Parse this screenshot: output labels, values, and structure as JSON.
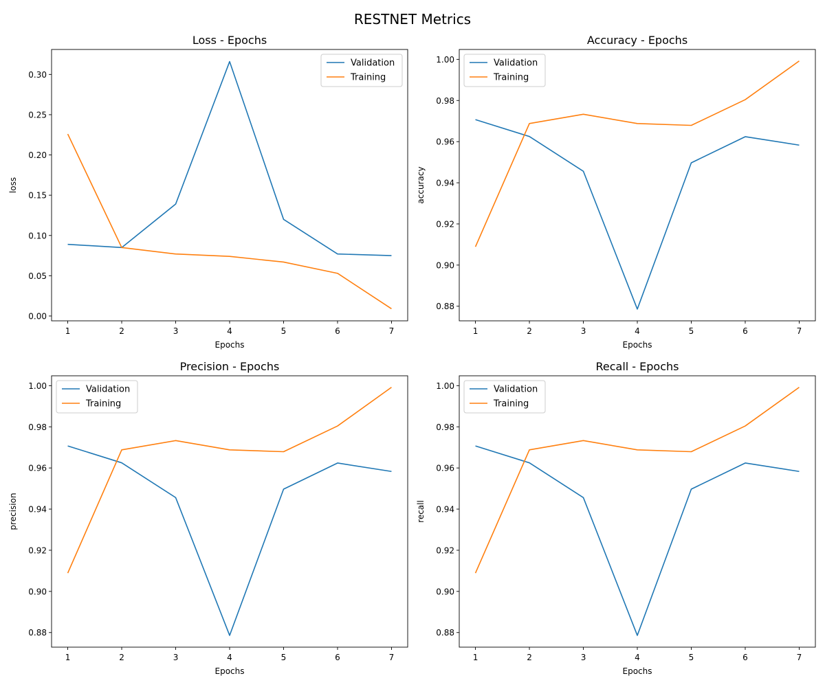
{
  "figure": {
    "title": "RESTNET Metrics"
  },
  "chart_data": [
    {
      "type": "line",
      "title": "Loss - Epochs",
      "xlabel": "Epochs",
      "ylabel": "loss",
      "x": [
        1,
        2,
        3,
        4,
        5,
        6,
        7
      ],
      "xticks": [
        1,
        2,
        3,
        4,
        5,
        6,
        7
      ],
      "xlim": [
        0.7,
        7.3
      ],
      "ylim": [
        -0.006,
        0.331
      ],
      "yticks": [
        0.0,
        0.05,
        0.1,
        0.15,
        0.2,
        0.25,
        0.3
      ],
      "ytick_labels": [
        "0.00",
        "0.05",
        "0.10",
        "0.15",
        "0.20",
        "0.25",
        "0.30"
      ],
      "legend": "top-right",
      "grid": false,
      "series": [
        {
          "name": "Validation",
          "color": "#1f77b4",
          "values": [
            0.089,
            0.085,
            0.139,
            0.316,
            0.12,
            0.077,
            0.075
          ]
        },
        {
          "name": "Training",
          "color": "#ff7f0e",
          "values": [
            0.226,
            0.085,
            0.077,
            0.074,
            0.067,
            0.053,
            0.009
          ]
        }
      ]
    },
    {
      "type": "line",
      "title": "Accuracy - Epochs",
      "xlabel": "Epochs",
      "ylabel": "accuracy",
      "x": [
        1,
        2,
        3,
        4,
        5,
        6,
        7
      ],
      "xticks": [
        1,
        2,
        3,
        4,
        5,
        6,
        7
      ],
      "xlim": [
        0.7,
        7.3
      ],
      "ylim": [
        0.8729,
        1.0048
      ],
      "yticks": [
        0.88,
        0.9,
        0.92,
        0.94,
        0.96,
        0.98,
        1.0
      ],
      "ytick_labels": [
        "0.88",
        "0.90",
        "0.92",
        "0.94",
        "0.96",
        "0.98",
        "1.00"
      ],
      "legend": "top-left",
      "grid": false,
      "series": [
        {
          "name": "Validation",
          "color": "#1f77b4",
          "values": [
            0.9707,
            0.9625,
            0.9456,
            0.8786,
            0.9497,
            0.9624,
            0.9583
          ]
        },
        {
          "name": "Training",
          "color": "#ff7f0e",
          "values": [
            0.9089,
            0.9688,
            0.9733,
            0.9688,
            0.9679,
            0.9804,
            0.9992
          ]
        }
      ]
    },
    {
      "type": "line",
      "title": "Precision - Epochs",
      "xlabel": "Epochs",
      "ylabel": "precision",
      "x": [
        1,
        2,
        3,
        4,
        5,
        6,
        7
      ],
      "xticks": [
        1,
        2,
        3,
        4,
        5,
        6,
        7
      ],
      "xlim": [
        0.7,
        7.3
      ],
      "ylim": [
        0.8729,
        1.0048
      ],
      "yticks": [
        0.88,
        0.9,
        0.92,
        0.94,
        0.96,
        0.98,
        1.0
      ],
      "ytick_labels": [
        "0.88",
        "0.90",
        "0.92",
        "0.94",
        "0.96",
        "0.98",
        "1.00"
      ],
      "legend": "top-left",
      "grid": false,
      "series": [
        {
          "name": "Validation",
          "color": "#1f77b4",
          "values": [
            0.9707,
            0.9625,
            0.9456,
            0.8786,
            0.9497,
            0.9624,
            0.9583
          ]
        },
        {
          "name": "Training",
          "color": "#ff7f0e",
          "values": [
            0.9089,
            0.9688,
            0.9733,
            0.9688,
            0.9679,
            0.9804,
            0.9992
          ]
        }
      ]
    },
    {
      "type": "line",
      "title": "Recall - Epochs",
      "xlabel": "Epochs",
      "ylabel": "recall",
      "x": [
        1,
        2,
        3,
        4,
        5,
        6,
        7
      ],
      "xticks": [
        1,
        2,
        3,
        4,
        5,
        6,
        7
      ],
      "xlim": [
        0.7,
        7.3
      ],
      "ylim": [
        0.8729,
        1.0048
      ],
      "yticks": [
        0.88,
        0.9,
        0.92,
        0.94,
        0.96,
        0.98,
        1.0
      ],
      "ytick_labels": [
        "0.88",
        "0.90",
        "0.92",
        "0.94",
        "0.96",
        "0.98",
        "1.00"
      ],
      "legend": "top-left",
      "grid": false,
      "series": [
        {
          "name": "Validation",
          "color": "#1f77b4",
          "values": [
            0.9707,
            0.9625,
            0.9456,
            0.8786,
            0.9497,
            0.9624,
            0.9583
          ]
        },
        {
          "name": "Training",
          "color": "#ff7f0e",
          "values": [
            0.9089,
            0.9688,
            0.9733,
            0.9688,
            0.9679,
            0.9804,
            0.9992
          ]
        }
      ]
    }
  ]
}
